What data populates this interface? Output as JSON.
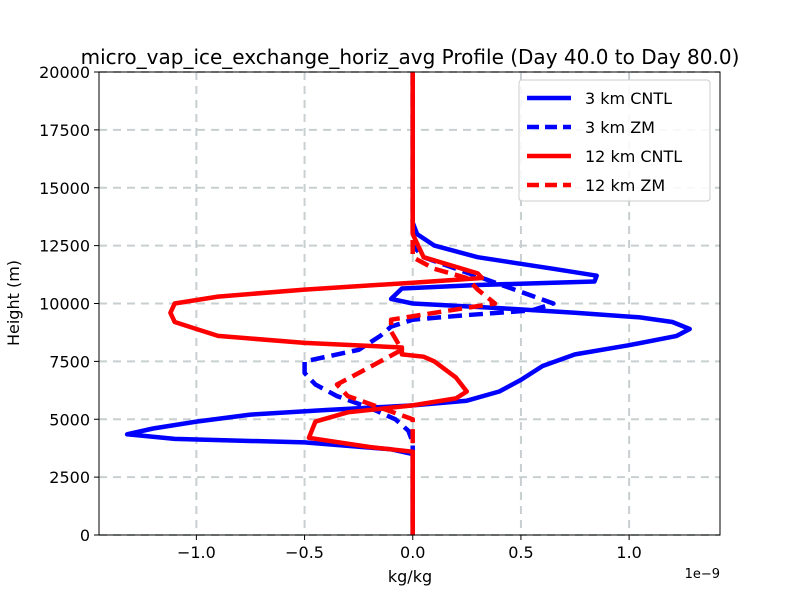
{
  "chart_data": {
    "type": "line",
    "title": "micro_vap_ice_exchange_horiz_avg Profile (Day 40.0 to Day 80.0)",
    "xlabel": "kg/kg",
    "ylabel": "Height (m)",
    "x_offset_label": "1e−9",
    "xlim": [
      -1.45,
      1.42
    ],
    "ylim": [
      0,
      20000
    ],
    "xticks": [
      -1.0,
      -0.5,
      0.0,
      0.5,
      1.0
    ],
    "xtick_labels": [
      "−1.0",
      "−0.5",
      "0.0",
      "0.5",
      "1.0"
    ],
    "yticks": [
      0,
      2500,
      5000,
      7500,
      10000,
      12500,
      15000,
      17500,
      20000
    ],
    "ytick_labels": [
      "0",
      "2500",
      "5000",
      "7500",
      "10000",
      "12500",
      "15000",
      "17500",
      "20000"
    ],
    "grid": true,
    "legend_position": "top-right",
    "series": [
      {
        "name": "3 km CNTL",
        "color": "#0000ff",
        "style": "solid",
        "points": [
          [
            0,
            20000
          ],
          [
            0,
            14000
          ],
          [
            0,
            13500
          ],
          [
            0.02,
            13000
          ],
          [
            0.1,
            12500
          ],
          [
            0.3,
            12000
          ],
          [
            0.65,
            11500
          ],
          [
            0.85,
            11200
          ],
          [
            0.84,
            10950
          ],
          [
            0.3,
            10800
          ],
          [
            -0.05,
            10650
          ],
          [
            -0.1,
            10200
          ],
          [
            0.0,
            10000
          ],
          [
            0.4,
            9800
          ],
          [
            0.75,
            9600
          ],
          [
            1.05,
            9400
          ],
          [
            1.2,
            9200
          ],
          [
            1.28,
            8900
          ],
          [
            1.22,
            8600
          ],
          [
            1.0,
            8200
          ],
          [
            0.75,
            7800
          ],
          [
            0.6,
            7300
          ],
          [
            0.5,
            6700
          ],
          [
            0.4,
            6200
          ],
          [
            0.25,
            5800
          ],
          [
            0.0,
            5600
          ],
          [
            -0.4,
            5400
          ],
          [
            -0.75,
            5200
          ],
          [
            -1.0,
            4900
          ],
          [
            -1.2,
            4600
          ],
          [
            -1.32,
            4350
          ],
          [
            -1.1,
            4150
          ],
          [
            -0.5,
            4000
          ],
          [
            -0.1,
            3700
          ],
          [
            0.0,
            3500
          ],
          [
            0,
            0
          ]
        ]
      },
      {
        "name": "3 km ZM",
        "color": "#0000ff",
        "style": "dashed",
        "points": [
          [
            0,
            20000
          ],
          [
            0,
            13500
          ],
          [
            0.0,
            12500
          ],
          [
            0.05,
            12000
          ],
          [
            0.2,
            11500
          ],
          [
            0.35,
            11000
          ],
          [
            0.5,
            10500
          ],
          [
            0.65,
            10000
          ],
          [
            0.55,
            9700
          ],
          [
            0.25,
            9500
          ],
          [
            0.0,
            9300
          ],
          [
            -0.1,
            9000
          ],
          [
            -0.15,
            8600
          ],
          [
            -0.25,
            8000
          ],
          [
            -0.5,
            7500
          ],
          [
            -0.5,
            7000
          ],
          [
            -0.45,
            6500
          ],
          [
            -0.35,
            6000
          ],
          [
            -0.2,
            5500
          ],
          [
            -0.08,
            5000
          ],
          [
            -0.02,
            4500
          ],
          [
            0.0,
            4000
          ],
          [
            0.0,
            3200
          ],
          [
            0,
            0
          ]
        ]
      },
      {
        "name": "12 km CNTL",
        "color": "#ff0000",
        "style": "solid",
        "points": [
          [
            0,
            20000
          ],
          [
            0,
            14000
          ],
          [
            0,
            13000
          ],
          [
            0.05,
            12000
          ],
          [
            0.3,
            11300
          ],
          [
            0.32,
            11100
          ],
          [
            0.0,
            10900
          ],
          [
            -0.5,
            10600
          ],
          [
            -0.9,
            10300
          ],
          [
            -1.1,
            10000
          ],
          [
            -1.12,
            9600
          ],
          [
            -1.1,
            9200
          ],
          [
            -1.0,
            8900
          ],
          [
            -0.9,
            8600
          ],
          [
            -0.5,
            8300
          ],
          [
            -0.05,
            8100
          ],
          [
            -0.05,
            7800
          ],
          [
            0.05,
            7700
          ],
          [
            0.1,
            7500
          ],
          [
            0.2,
            6800
          ],
          [
            0.25,
            6200
          ],
          [
            0.2,
            5900
          ],
          [
            0.0,
            5600
          ],
          [
            -0.3,
            5300
          ],
          [
            -0.45,
            4900
          ],
          [
            -0.48,
            4200
          ],
          [
            -0.2,
            3800
          ],
          [
            0.0,
            3600
          ],
          [
            0,
            0
          ]
        ]
      },
      {
        "name": "12 km ZM",
        "color": "#ff0000",
        "style": "dashed",
        "points": [
          [
            0,
            20000
          ],
          [
            0,
            13000
          ],
          [
            0.0,
            12000
          ],
          [
            0.1,
            11500
          ],
          [
            0.25,
            11100
          ],
          [
            0.3,
            10600
          ],
          [
            0.38,
            10000
          ],
          [
            0.1,
            9600
          ],
          [
            -0.1,
            9300
          ],
          [
            -0.1,
            8800
          ],
          [
            -0.05,
            8000
          ],
          [
            -0.25,
            7000
          ],
          [
            -0.35,
            6500
          ],
          [
            -0.3,
            6000
          ],
          [
            -0.15,
            5500
          ],
          [
            0.0,
            5000
          ],
          [
            0.0,
            0
          ]
        ]
      }
    ]
  }
}
